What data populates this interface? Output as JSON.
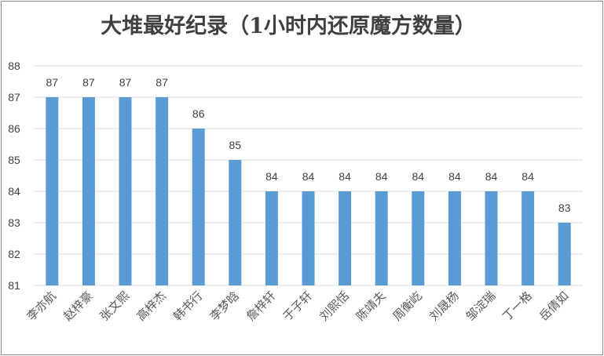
{
  "chart_data": {
    "type": "bar",
    "title": "大堆最好纪录（1小时内还原魔方数量）",
    "categories": [
      "李亦航",
      "赵梓豪",
      "张文熙",
      "高梓杰",
      "韩书行",
      "李梦晗",
      "詹梓轩",
      "于子轩",
      "刘熙恬",
      "陈靖夫",
      "周衡屹",
      "刘晟杨",
      "邹淀瑞",
      "丁一格",
      "岳倩如"
    ],
    "values": [
      87,
      87,
      87,
      87,
      86,
      85,
      84,
      84,
      84,
      84,
      84,
      84,
      84,
      84,
      83
    ],
    "yticks": [
      "81",
      "82",
      "83",
      "84",
      "85",
      "86",
      "87",
      "88"
    ],
    "ylim": [
      81,
      88
    ],
    "grid": true,
    "legend": "none",
    "colors": {
      "bar": "#5b9bd5"
    }
  }
}
